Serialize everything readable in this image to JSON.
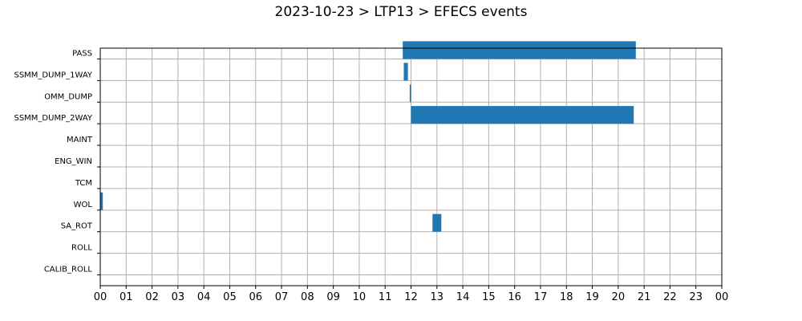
{
  "chart_data": {
    "type": "bar",
    "orientation": "horizontal-timeline",
    "title": "2023-10-23 > LTP13 > EFECS events",
    "xlabel": "",
    "ylabel": "",
    "xlim": [
      0,
      24
    ],
    "x_tick_labels": [
      "00",
      "01",
      "02",
      "03",
      "04",
      "05",
      "06",
      "07",
      "08",
      "09",
      "10",
      "11",
      "12",
      "13",
      "14",
      "15",
      "16",
      "17",
      "18",
      "19",
      "20",
      "21",
      "22",
      "23",
      "00"
    ],
    "categories": [
      "PASS",
      "SSMM_DUMP_1WAY",
      "OMM_DUMP",
      "SSMM_DUMP_2WAY",
      "MAINT",
      "ENG_WIN",
      "TCM",
      "WOL",
      "SA_ROT",
      "ROLL",
      "CALIB_ROLL"
    ],
    "grid": true,
    "bar_color": "#1f77b4",
    "events": [
      {
        "category": "PASS",
        "start": 11.68,
        "end": 20.68
      },
      {
        "category": "SSMM_DUMP_1WAY",
        "start": 11.72,
        "end": 11.88
      },
      {
        "category": "OMM_DUMP",
        "start": 11.95,
        "end": 12.0
      },
      {
        "category": "SSMM_DUMP_2WAY",
        "start": 12.0,
        "end": 20.6
      },
      {
        "category": "WOL",
        "start": 0.0,
        "end": 0.1
      },
      {
        "category": "SA_ROT",
        "start": 12.83,
        "end": 13.17
      }
    ]
  }
}
